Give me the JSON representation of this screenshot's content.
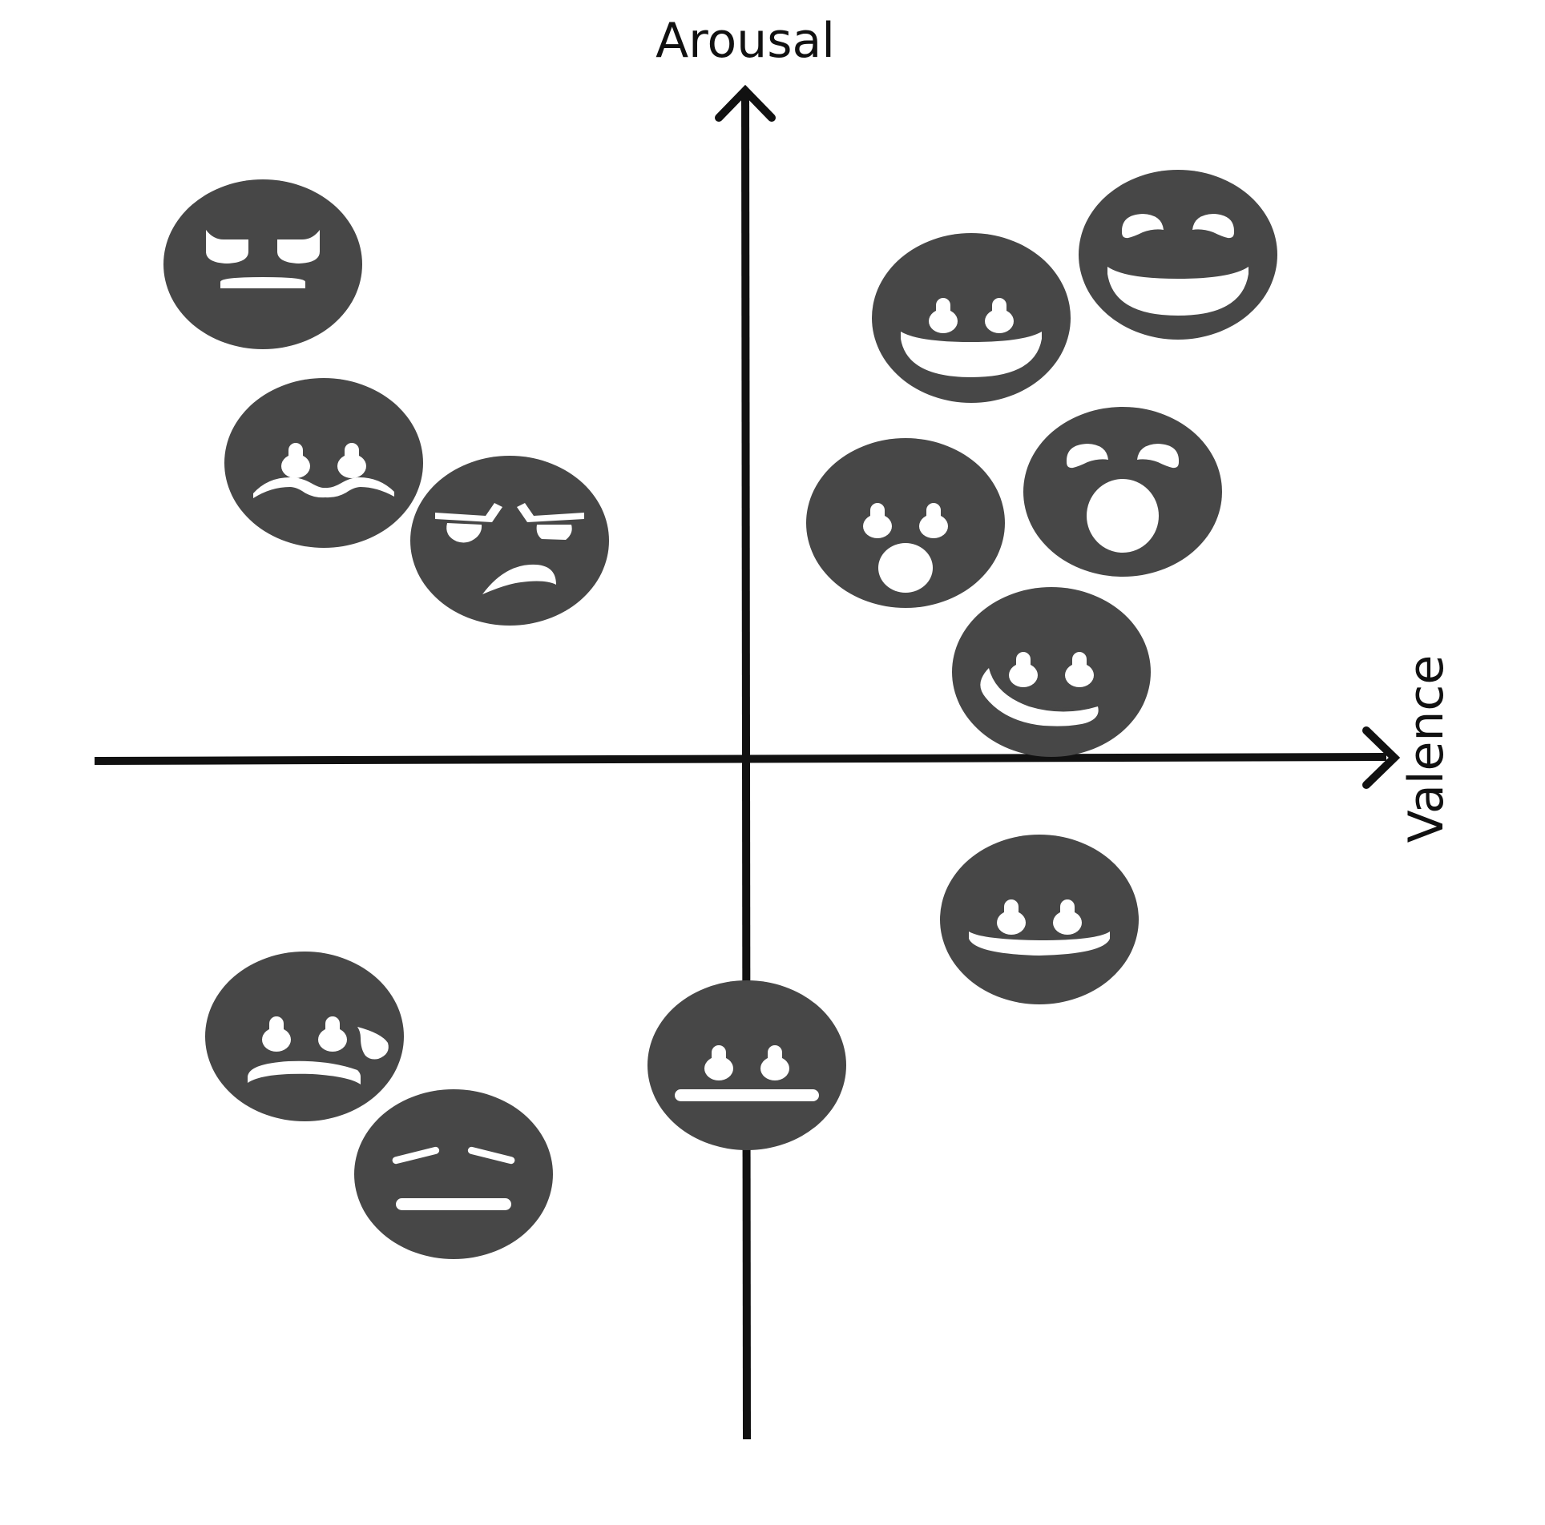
{
  "axes": {
    "y_label": "Arousal",
    "x_label": "Valence"
  },
  "colors": {
    "axis": "#111111",
    "face": "#474747",
    "feature": "#ffffff"
  },
  "faces": [
    {
      "name": "angry-face-icon"
    },
    {
      "name": "worried-face-icon"
    },
    {
      "name": "frustrated-face-icon"
    },
    {
      "name": "happy-face-icon"
    },
    {
      "name": "delighted-face-icon"
    },
    {
      "name": "surprised-face-icon"
    },
    {
      "name": "astonished-face-icon"
    },
    {
      "name": "pleased-face-icon"
    },
    {
      "name": "content-face-icon"
    },
    {
      "name": "sad-face-icon"
    },
    {
      "name": "tired-face-icon"
    },
    {
      "name": "neutral-face-icon"
    }
  ]
}
